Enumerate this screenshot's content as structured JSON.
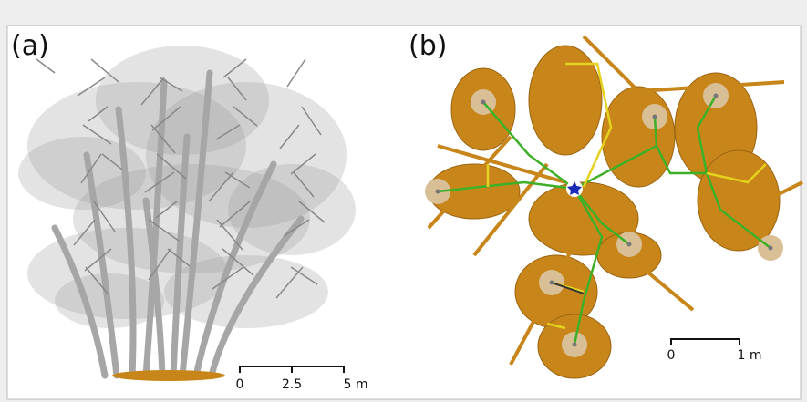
{
  "panels": [
    {
      "label": "(a)",
      "scale_bar": {
        "labels": [
          "0",
          "2.5",
          "5 m"
        ]
      }
    },
    {
      "label": "(b)",
      "scale_bar": {
        "labels": [
          "0",
          "1 m"
        ]
      }
    }
  ]
}
